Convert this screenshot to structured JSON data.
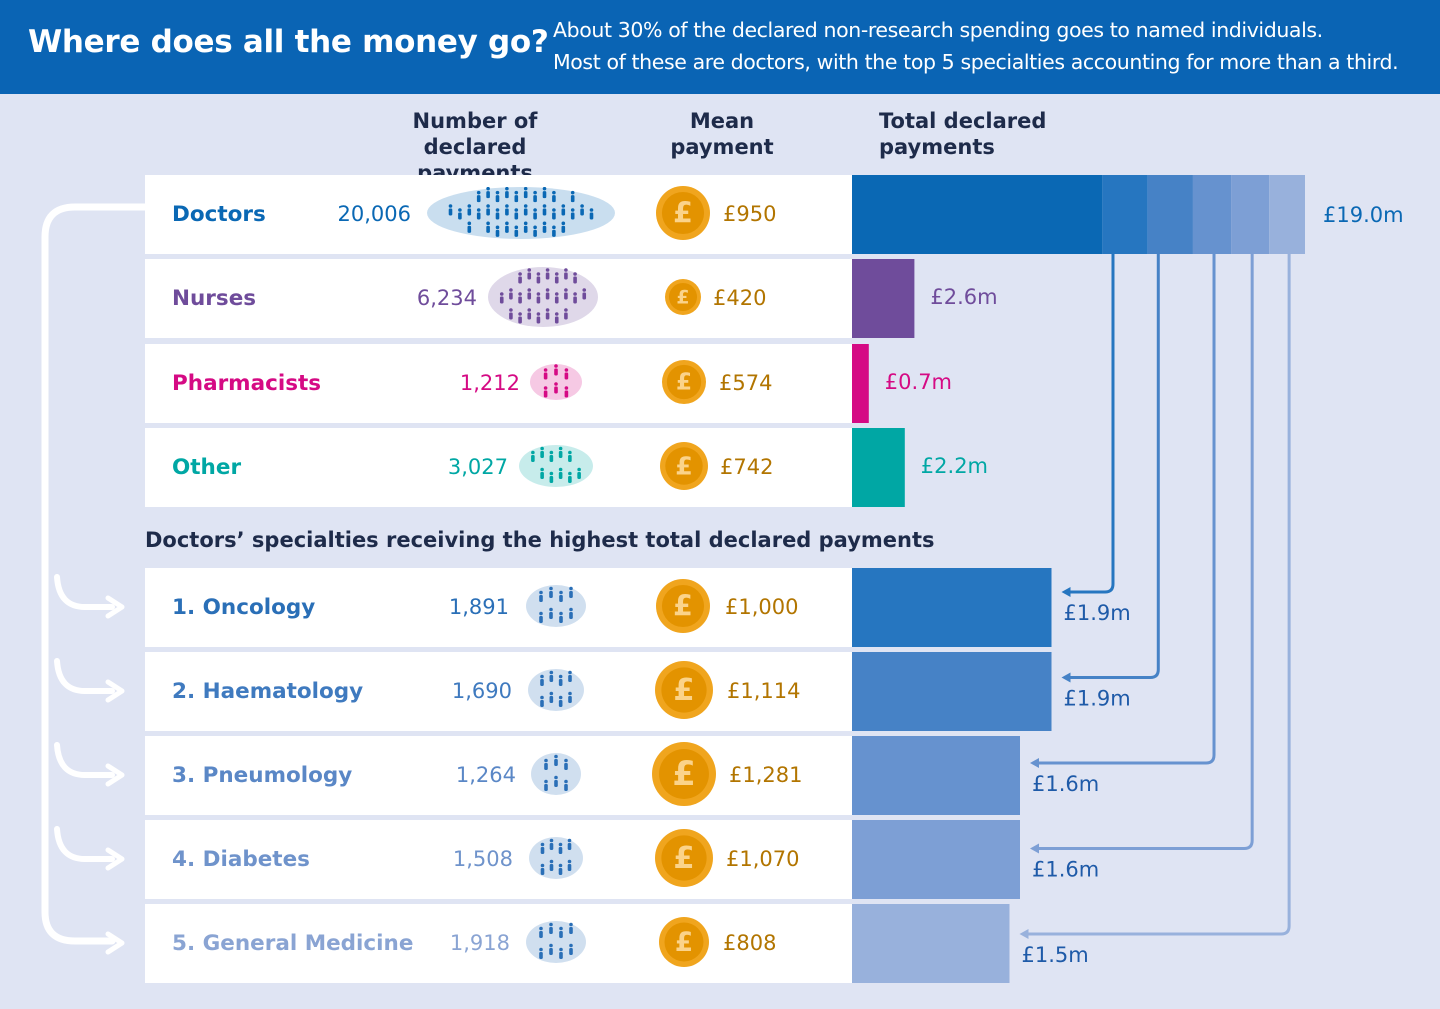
{
  "header": {
    "title": "Where does all the money go?",
    "subtitle_line1": "About 30% of the declared non-research spending goes to named individuals.",
    "subtitle_line2": "Most of these are doctors, with the top 5 specialties accounting for more than a third."
  },
  "columns": {
    "count_line1": "Number of",
    "count_line2": "declared payments",
    "mean_line1": "Mean",
    "mean_line2": "payment",
    "total_line1": "Total declared",
    "total_line2": "payments"
  },
  "section_title": "Doctors’ specialties receiving the highest total declared payments",
  "chart_data": {
    "type": "bar",
    "title": "Where does all the money go?",
    "professions": [
      {
        "label": "Doctors",
        "count": "20,006",
        "mean": "£950",
        "total": "£19.0m",
        "total_value": 19.0,
        "color": "#0a68b4"
      },
      {
        "label": "Nurses",
        "count": "6,234",
        "mean": "£420",
        "total": "£2.6m",
        "total_value": 2.6,
        "color": "#6f4c9b"
      },
      {
        "label": "Pharmacists",
        "count": "1,212",
        "mean": "£574",
        "total": "£0.7m",
        "total_value": 0.7,
        "color": "#d50a84"
      },
      {
        "label": "Other",
        "count": "3,027",
        "mean": "£742",
        "total": "£2.2m",
        "total_value": 2.2,
        "color": "#00a7a4"
      }
    ],
    "specialties": [
      {
        "label": "1. Oncology",
        "count": "1,891",
        "mean": "£1,000",
        "total": "£1.9m",
        "total_value": 1.9,
        "color": "#2676c0",
        "label_color": "#2a6fb7"
      },
      {
        "label": "2. Haematology",
        "count": "1,690",
        "mean": "£1,114",
        "total": "£1.9m",
        "total_value": 1.9,
        "color": "#4682c6",
        "label_color": "#3f7abf"
      },
      {
        "label": "3. Pneumology",
        "count": "1,264",
        "mean": "£1,281",
        "total": "£1.6m",
        "total_value": 1.6,
        "color": "#6692cf",
        "label_color": "#5a87c6"
      },
      {
        "label": "4. Diabetes",
        "count": "1,508",
        "mean": "£1,070",
        "total": "£1.6m",
        "total_value": 1.6,
        "color": "#7d9fd5",
        "label_color": "#6f93cb"
      },
      {
        "label": "5. General Medicine",
        "count": "1,918",
        "mean": "£808",
        "total": "£1.5m",
        "total_value": 1.5,
        "color": "#98b1dc",
        "label_color": "#8aa4d3"
      }
    ]
  }
}
